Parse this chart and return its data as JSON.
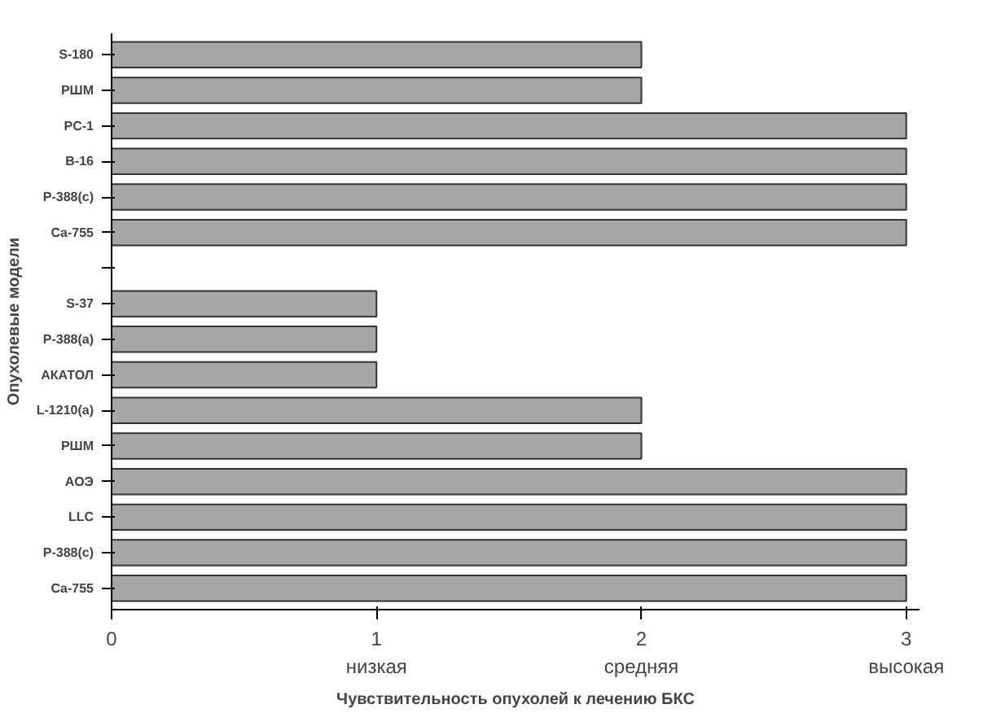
{
  "chart_data": {
    "type": "bar",
    "orientation": "horizontal",
    "xlabel": "Чувствительность опухолей к лечению БКС",
    "ylabel": "Опухолевые модели",
    "categories": [
      "S-180",
      "РШМ",
      "PC-1",
      "B-16",
      "P-388(c)",
      "Ca-755",
      null,
      "S-37",
      "P-388(a)",
      "АКАТОЛ",
      "L-1210(a)",
      "РШМ",
      "АОЭ",
      "LLC",
      "P-388(c)",
      "Ca-755"
    ],
    "series": [
      {
        "color": "#a6a6a6",
        "values": [
          2,
          2,
          3,
          3,
          3,
          3,
          null,
          1,
          1,
          1,
          2,
          2,
          3,
          3,
          3,
          3
        ]
      }
    ],
    "xlim": [
      0,
      3.05
    ],
    "xticks": [
      0,
      {
        "value": 1,
        "label": "1\nнизкая"
      },
      {
        "value": 2,
        "label": "2\nсредняя"
      },
      {
        "value": 3,
        "label": "3\nвысокая"
      }
    ],
    "grid": false
  }
}
